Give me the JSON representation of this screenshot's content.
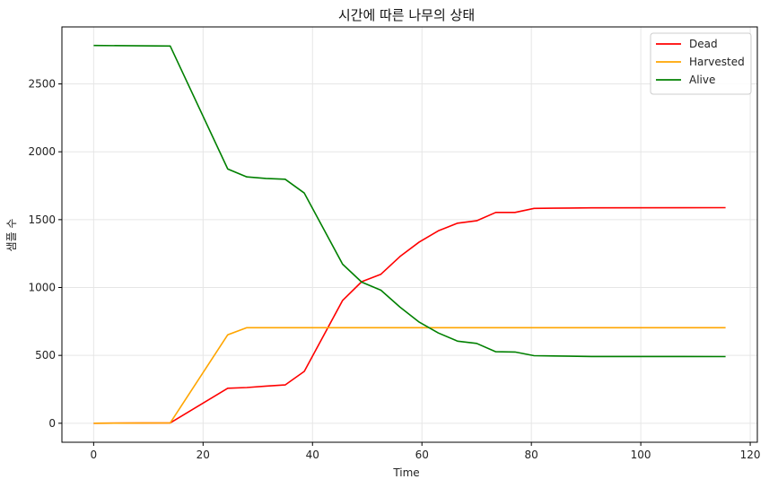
{
  "chart_data": {
    "type": "line",
    "title": "시간에 따른 나무의 상태",
    "xlabel": "Time",
    "ylabel": "샘플 수",
    "xlim": [
      -5.8,
      121.3
    ],
    "ylim": [
      -140,
      2920
    ],
    "xticks": [
      0,
      20,
      40,
      60,
      80,
      100,
      120
    ],
    "yticks": [
      0,
      500,
      1000,
      1500,
      2000,
      2500
    ],
    "grid": true,
    "legend_position": "top-right",
    "series": [
      {
        "name": "Dead",
        "color": "#ff0000",
        "points": [
          [
            0,
            0
          ],
          [
            14,
            3
          ],
          [
            24.5,
            258
          ],
          [
            28,
            263
          ],
          [
            31.5,
            274
          ],
          [
            35,
            282
          ],
          [
            38.5,
            382
          ],
          [
            45.5,
            905
          ],
          [
            49,
            1043
          ],
          [
            52.5,
            1098
          ],
          [
            56,
            1229
          ],
          [
            59.5,
            1335
          ],
          [
            63,
            1418
          ],
          [
            66.5,
            1474
          ],
          [
            70,
            1492
          ],
          [
            73.5,
            1553
          ],
          [
            77,
            1553
          ],
          [
            80.5,
            1583
          ],
          [
            84,
            1584
          ],
          [
            91,
            1587
          ],
          [
            115.5,
            1588
          ]
        ]
      },
      {
        "name": "Harvested",
        "color": "#ffa500",
        "points": [
          [
            0,
            0
          ],
          [
            14,
            3
          ],
          [
            24.5,
            652
          ],
          [
            28,
            704
          ],
          [
            35,
            704
          ],
          [
            45.5,
            704
          ],
          [
            80,
            704
          ],
          [
            115.5,
            704
          ]
        ]
      },
      {
        "name": "Alive",
        "color": "#008000",
        "points": [
          [
            0,
            2783
          ],
          [
            14,
            2779
          ],
          [
            24.5,
            1873
          ],
          [
            28,
            1815
          ],
          [
            31.5,
            1804
          ],
          [
            35,
            1798
          ],
          [
            38.5,
            1696
          ],
          [
            45.5,
            1172
          ],
          [
            49,
            1040
          ],
          [
            52.5,
            980
          ],
          [
            56,
            855
          ],
          [
            59.5,
            745
          ],
          [
            63,
            665
          ],
          [
            66.5,
            605
          ],
          [
            70,
            588
          ],
          [
            73.5,
            527
          ],
          [
            77,
            525
          ],
          [
            80.5,
            498
          ],
          [
            84,
            496
          ],
          [
            91,
            492
          ],
          [
            115.5,
            491
          ]
        ]
      }
    ]
  }
}
